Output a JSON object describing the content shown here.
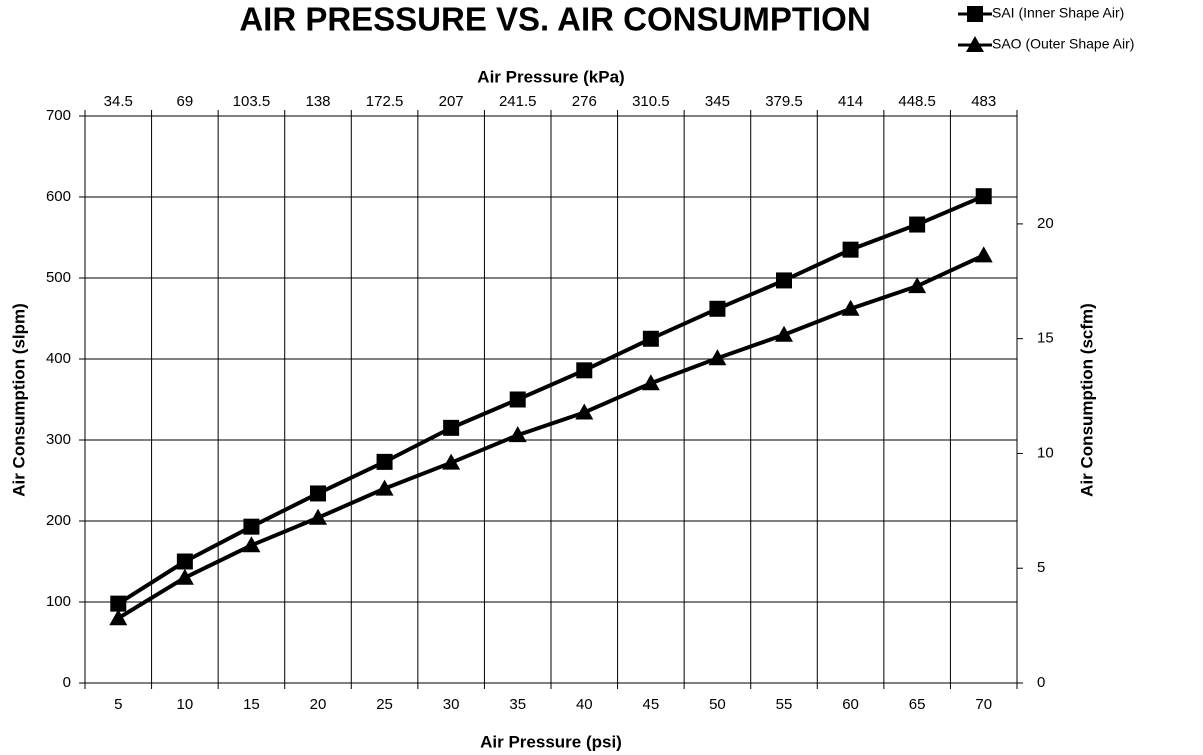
{
  "chart_data": {
    "type": "line",
    "title": "AIR PRESSURE VS. AIR CONSUMPTION",
    "x_label": "Air Pressure (psi)",
    "x2_label": "Air Pressure (kPa)",
    "y_label": "Air Consumption (slpm)",
    "y2_label": "Air Consumption (scfm)",
    "categories": [
      5,
      10,
      15,
      20,
      25,
      30,
      35,
      40,
      45,
      50,
      55,
      60,
      65,
      70
    ],
    "x2_categories": [
      34.5,
      69,
      103.5,
      138,
      172.5,
      207,
      241.5,
      276,
      310.5,
      345,
      379.5,
      414,
      448.5,
      483
    ],
    "series": [
      {
        "name": "SAI (Inner Shape Air)",
        "color": "#000000",
        "marker": "square",
        "values": [
          98,
          150,
          193,
          234,
          273,
          315,
          350,
          386,
          425,
          462,
          497,
          535,
          566,
          601
        ]
      },
      {
        "name": "SAO (Outer Shape Air)",
        "color": "#000000",
        "marker": "triangle",
        "values": [
          80,
          130,
          170,
          204,
          240,
          272,
          306,
          334,
          370,
          401,
          430,
          462,
          490,
          528
        ]
      }
    ],
    "ylim": [
      0,
      700
    ],
    "yticks": [
      0,
      100,
      200,
      300,
      400,
      500,
      600,
      700
    ],
    "y2lim": [
      0,
      24.7
    ],
    "y2ticks": [
      0,
      5,
      10,
      15,
      20
    ],
    "grid": true,
    "legend": "upper right"
  }
}
